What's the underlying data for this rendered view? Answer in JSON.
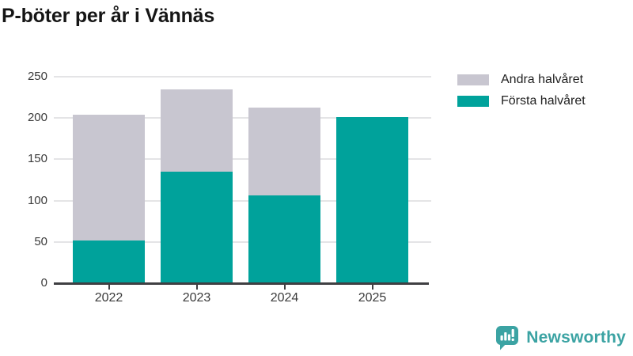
{
  "chart_data": {
    "type": "bar",
    "stacked": true,
    "title": "P-böter per år i Vännäs",
    "categories": [
      "2022",
      "2023",
      "2024",
      "2025"
    ],
    "series": [
      {
        "name": "Första halvåret",
        "color": "#00a29b",
        "values": [
          53,
          136,
          107,
          202
        ]
      },
      {
        "name": "Andra halvåret",
        "color": "#c8c6d0",
        "values": [
          152,
          100,
          107,
          0
        ]
      }
    ],
    "totals": [
      205,
      236,
      214,
      202
    ],
    "xlabel": "",
    "ylabel": "",
    "ylim": [
      0,
      250
    ],
    "yticks": [
      0,
      50,
      100,
      150,
      200,
      250
    ],
    "grid": true,
    "legend": {
      "position": "top-right",
      "entries": [
        "Andra halvåret",
        "Första halvåret"
      ]
    }
  },
  "branding": {
    "logo_text": "Newsworthy",
    "logo_color": "#3ba3a3",
    "logo_icon": "bar-chart-speech-bubble-icon"
  }
}
